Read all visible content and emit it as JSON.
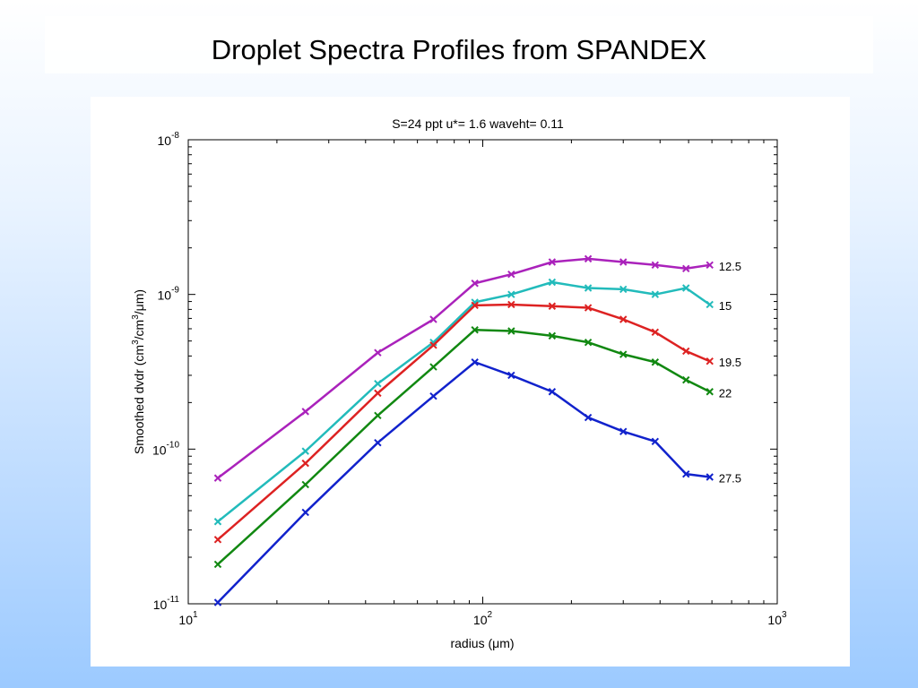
{
  "slide": {
    "title": "Droplet Spectra Profiles from SPANDEX"
  },
  "chart_data": {
    "type": "line",
    "title": "S=24 ppt   u*= 1.6  waveht= 0.11",
    "xlabel_main": "radius (",
    "xlabel_unit": "μm)",
    "ylabel_prefix": "Smoothed dvdr (cm",
    "ylabel_mid": "/cm",
    "ylabel_suffix": "/μm)",
    "ylabel_exp": "3",
    "x_scale": "log",
    "y_scale": "log",
    "xlim": [
      10,
      1000
    ],
    "ylim": [
      1e-11,
      1e-08
    ],
    "x_ticks": [
      {
        "value": 10,
        "base": "10",
        "exp": "1"
      },
      {
        "value": 100,
        "base": "10",
        "exp": "2"
      },
      {
        "value": 1000,
        "base": "10",
        "exp": "3"
      }
    ],
    "y_ticks": [
      {
        "value": 1e-11,
        "base": "10",
        "exp": "-11"
      },
      {
        "value": 1e-10,
        "base": "10",
        "exp": "-10"
      },
      {
        "value": 1e-09,
        "base": "10",
        "exp": "-9"
      },
      {
        "value": 1e-08,
        "base": "10",
        "exp": "-8"
      }
    ],
    "grid": false,
    "legend": "none",
    "x": [
      12.6,
      25,
      44,
      68,
      94,
      125,
      172,
      228,
      300,
      385,
      490,
      590
    ],
    "series": [
      {
        "name": "12.5",
        "color": "#aa22bb",
        "values": [
          6.5e-11,
          1.75e-10,
          4.2e-10,
          6.9e-10,
          1.18e-09,
          1.35e-09,
          1.62e-09,
          1.7e-09,
          1.62e-09,
          1.55e-09,
          1.47e-09,
          1.55e-09
        ]
      },
      {
        "name": "15",
        "color": "#22bbbb",
        "values": [
          3.4e-11,
          9.7e-11,
          2.65e-10,
          4.9e-10,
          8.9e-10,
          1e-09,
          1.2e-09,
          1.1e-09,
          1.08e-09,
          1e-09,
          1.1e-09,
          8.6e-10
        ]
      },
      {
        "name": "19.5",
        "color": "#dd2222",
        "values": [
          2.6e-11,
          8.1e-11,
          2.3e-10,
          4.7e-10,
          8.5e-10,
          8.6e-10,
          8.4e-10,
          8.2e-10,
          6.9e-10,
          5.7e-10,
          4.3e-10,
          3.7e-10
        ]
      },
      {
        "name": "22",
        "color": "#118811",
        "values": [
          1.8e-11,
          5.9e-11,
          1.65e-10,
          3.4e-10,
          5.9e-10,
          5.8e-10,
          5.4e-10,
          4.9e-10,
          4.1e-10,
          3.65e-10,
          2.8e-10,
          2.35e-10
        ]
      },
      {
        "name": "27.5",
        "color": "#1122cc",
        "values": [
          1.02e-11,
          3.9e-11,
          1.1e-10,
          2.2e-10,
          3.65e-10,
          3e-10,
          2.35e-10,
          1.6e-10,
          1.3e-10,
          1.12e-10,
          6.9e-11,
          6.6e-11
        ]
      }
    ]
  }
}
